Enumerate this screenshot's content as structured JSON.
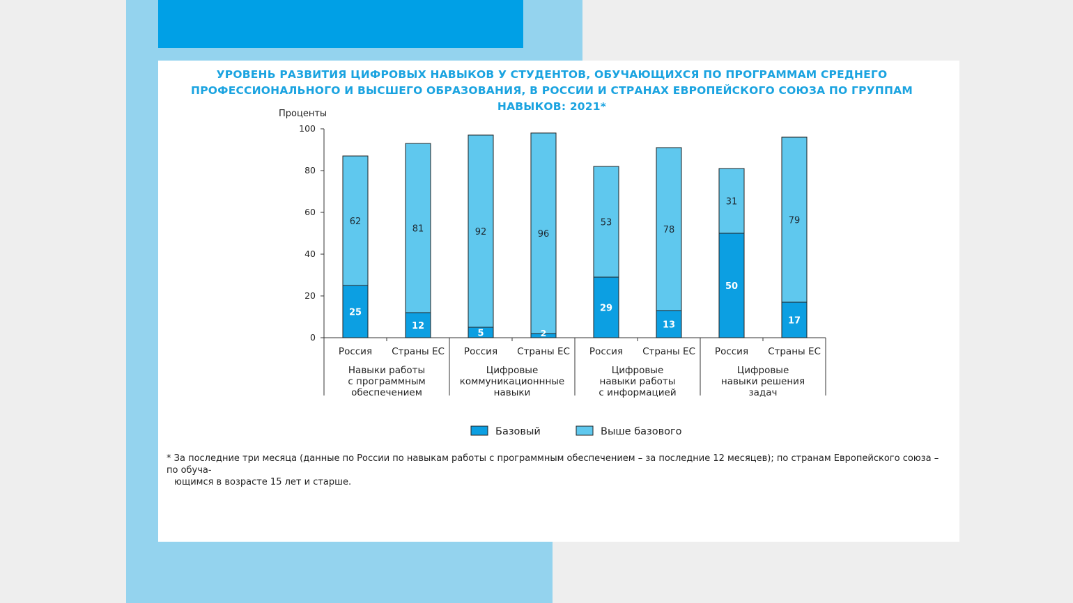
{
  "chart_data": {
    "type": "bar",
    "stacked": true,
    "title_lines": [
      "УРОВЕНЬ РАЗВИТИЯ ЦИФРОВЫХ НАВЫКОВ У СТУДЕНТОВ, ОБУЧАЮЩИХСЯ ПО ПРОГРАММАМ СРЕДНЕГО",
      "ПРОФЕССИОНАЛЬНОГО И ВЫСШЕГО ОБРАЗОВАНИЯ, В РОССИИ И СТРАНАХ ЕВРОПЕЙСКОГО СОЮЗА ПО ГРУППАМ НАВЫКОВ: 2021*"
    ],
    "ylabel": "Проценты",
    "ylim": [
      0,
      100
    ],
    "yticks": [
      0,
      20,
      40,
      60,
      80,
      100
    ],
    "groups": [
      {
        "label_lines": [
          "Навыки работы",
          "с программным",
          "обеспечением"
        ]
      },
      {
        "label_lines": [
          "Цифровые",
          "коммуникационнные",
          "навыки"
        ]
      },
      {
        "label_lines": [
          "Цифровые",
          "навыки работы",
          "с информацией"
        ]
      },
      {
        "label_lines": [
          "Цифровые",
          "навыки решения",
          "задач"
        ]
      }
    ],
    "categories": [
      "Россия",
      "Страны ЕС",
      "Россия",
      "Страны ЕС",
      "Россия",
      "Страны ЕС",
      "Россия",
      "Страны ЕС"
    ],
    "series": [
      {
        "name": "Базовый",
        "color": "#0c9fe2",
        "values": [
          25,
          12,
          5,
          2,
          29,
          13,
          50,
          17
        ]
      },
      {
        "name": "Выше базового",
        "color": "#5fc8ee",
        "values": [
          62,
          81,
          92,
          96,
          53,
          78,
          31,
          79
        ]
      }
    ],
    "legend_position": "bottom-center",
    "grid": false
  },
  "footnote_lines": [
    "* За последние три месяца (данные по России по навыкам работы с программным обеспечением – за последние 12 месяцев); по странам Европейского союза – по обуча-",
    "ющимся в возрасте 15 лет и старше."
  ]
}
